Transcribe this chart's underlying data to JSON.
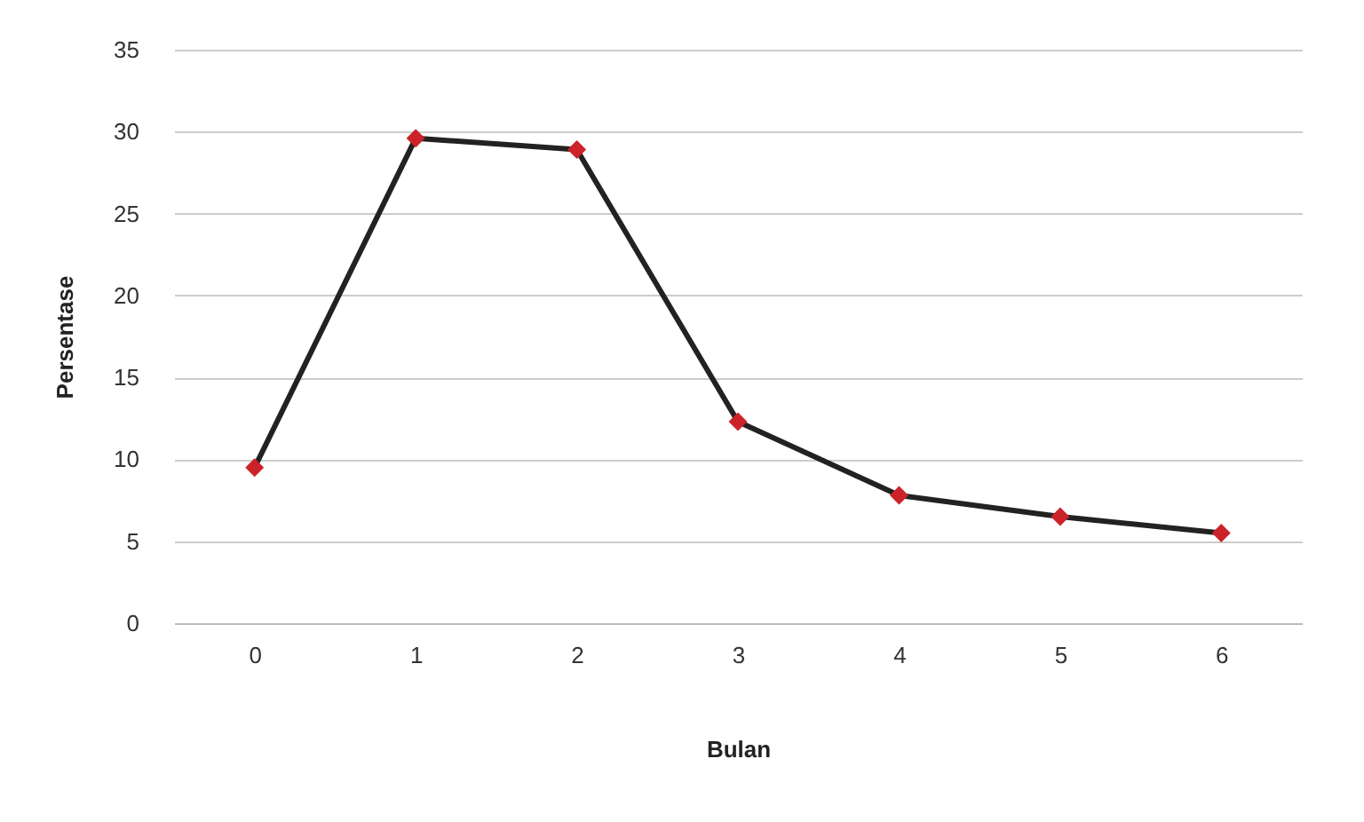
{
  "chart_data": {
    "type": "line",
    "xlabel": "Bulan",
    "ylabel": "Persentase",
    "categories": [
      "0",
      "1",
      "2",
      "3",
      "4",
      "5",
      "6"
    ],
    "series": [
      {
        "color": "#222222",
        "values": [
          9.5,
          29.6,
          28.9,
          12.3,
          7.8,
          6.5,
          5.5
        ]
      }
    ],
    "ylim": [
      0,
      35
    ],
    "yticks": [
      0,
      5,
      10,
      15,
      20,
      25,
      30,
      35
    ],
    "grid": "y",
    "marker": "diamond",
    "legend": false
  }
}
